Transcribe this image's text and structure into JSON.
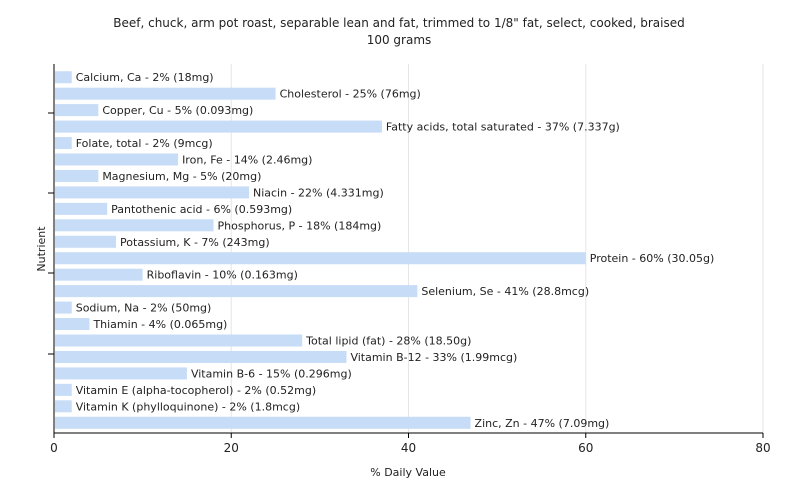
{
  "chart_data": {
    "type": "bar",
    "orientation": "horizontal",
    "title": "Beef, chuck, arm pot roast, separable lean and fat, trimmed to 1/8\" fat, select, cooked, braised",
    "subtitle": "100 grams",
    "xlabel": "% Daily Value",
    "ylabel": "Nutrient",
    "xlim": [
      0,
      80
    ],
    "xticks": [
      0,
      20,
      40,
      60,
      80
    ],
    "grid": true,
    "bar_color": "#c6dcf7",
    "categories": [
      "Calcium, Ca",
      "Cholesterol",
      "Copper, Cu",
      "Fatty acids, total saturated",
      "Folate, total",
      "Iron, Fe",
      "Magnesium, Mg",
      "Niacin",
      "Pantothenic acid",
      "Phosphorus, P",
      "Potassium, K",
      "Protein",
      "Riboflavin",
      "Selenium, Se",
      "Sodium, Na",
      "Thiamin",
      "Total lipid (fat)",
      "Vitamin B-12",
      "Vitamin B-6",
      "Vitamin E (alpha-tocopherol)",
      "Vitamin K (phylloquinone)",
      "Zinc, Zn"
    ],
    "values": [
      2,
      25,
      5,
      37,
      2,
      14,
      5,
      22,
      6,
      18,
      7,
      60,
      10,
      41,
      2,
      4,
      28,
      33,
      15,
      2,
      2,
      47
    ],
    "labels": [
      "Calcium, Ca - 2% (18mg)",
      "Cholesterol - 25% (76mg)",
      "Copper, Cu - 5% (0.093mg)",
      "Fatty acids, total saturated - 37% (7.337g)",
      "Folate, total - 2% (9mcg)",
      "Iron, Fe - 14% (2.46mg)",
      "Magnesium, Mg - 5% (20mg)",
      "Niacin - 22% (4.331mg)",
      "Pantothenic acid - 6% (0.593mg)",
      "Phosphorus, P - 18% (184mg)",
      "Potassium, K - 7% (243mg)",
      "Protein - 60% (30.05g)",
      "Riboflavin - 10% (0.163mg)",
      "Selenium, Se - 41% (28.8mcg)",
      "Sodium, Na - 2% (50mg)",
      "Thiamin - 4% (0.065mg)",
      "Total lipid (fat) - 28% (18.50g)",
      "Vitamin B-12 - 33% (1.99mcg)",
      "Vitamin B-6 - 15% (0.296mg)",
      "Vitamin E (alpha-tocopherol) - 2% (0.52mg)",
      "Vitamin K (phylloquinone) - 2% (1.8mcg)",
      "Zinc, Zn - 47% (7.09mg)"
    ]
  }
}
